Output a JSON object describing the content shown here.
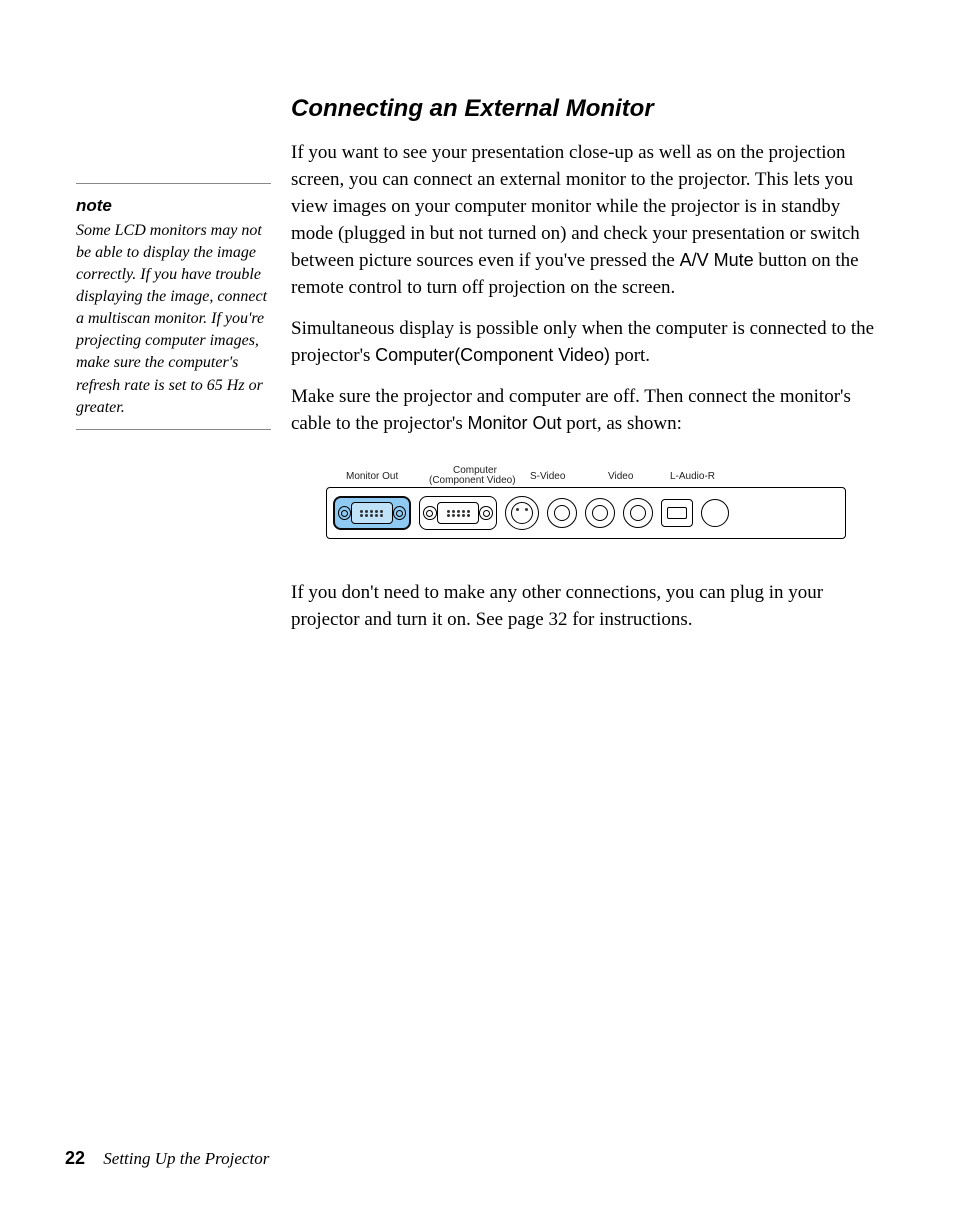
{
  "heading": "Connecting an External Monitor",
  "para1_a": "If you want to see your presentation close-up as well as on the projection screen, you can connect an external monitor to the projector. This lets you view images on your computer monitor while the projector is in standby mode (plugged in but not turned on) and check your presentation or switch between picture sources even if you've pressed the ",
  "para1_av": "A/V Mute",
  "para1_b": " button on the remote control to turn off projection on the screen.",
  "para2_a": "Simultaneous display is possible only when the computer is connected to the projector's ",
  "para2_port": "Computer(Component Video)",
  "para2_b": " port.",
  "para3_a": "Make sure the projector and computer are off. Then connect the monitor's cable to the projector's ",
  "para3_port": "Monitor Out",
  "para3_b": " port, as shown:",
  "para4": "If you don't need to make any other connections, you can plug in your projector and turn it on. See page 32 for instructions.",
  "sidebar": {
    "title": "note",
    "body": "Some LCD monitors may not be able to display the image correctly. If you have trouble displaying the image, connect a multiscan monitor. If you're projecting computer images, make sure the computer's refresh rate is set to 65 Hz or greater."
  },
  "diagram": {
    "labels": {
      "monitor_out": "Monitor Out",
      "computer_top": "Computer",
      "computer_bottom": "(Component Video)",
      "svideo": "S-Video",
      "video": "Video",
      "audio": "L-Audio-R"
    }
  },
  "footer": {
    "page": "22",
    "title": "Setting Up the Projector"
  }
}
